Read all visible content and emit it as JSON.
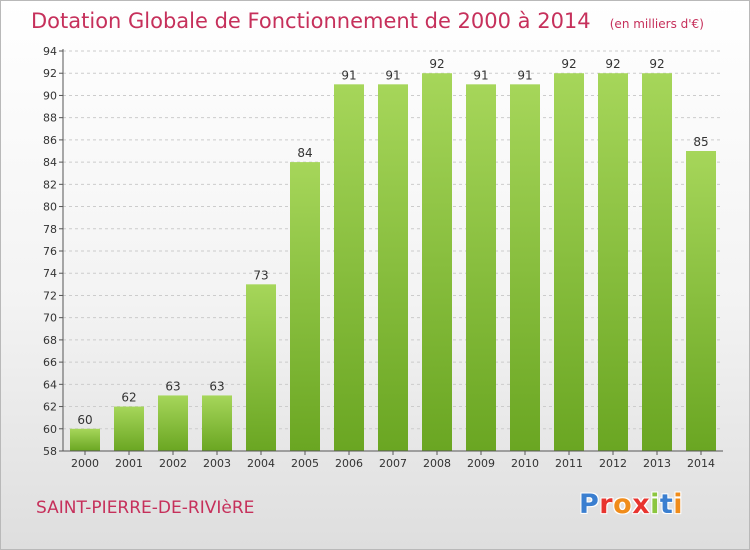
{
  "header": {
    "title": "Dotation Globale de Fonctionnement de 2000 à 2014",
    "unit": "(en milliers d'€)"
  },
  "place_name": "SAINT-PIERRE-DE-RIVIèRE",
  "logo": {
    "text": "Proxiti",
    "letter_colors": [
      "#3b7fd0",
      "#e8342f",
      "#f08c1a",
      "#e8342f",
      "#8cc63f",
      "#3b7fd0",
      "#f08c1a"
    ]
  },
  "colors": {
    "bar_light": "#a6d65a",
    "bar_dark": "#6aa622",
    "text": "#c6305b",
    "grid": "#cccccc"
  },
  "chart_data": {
    "type": "bar",
    "title": "Dotation Globale de Fonctionnement de 2000 à 2014",
    "subtitle": "(en milliers d'€)",
    "categories": [
      "2000",
      "2001",
      "2002",
      "2003",
      "2004",
      "2005",
      "2006",
      "2007",
      "2008",
      "2009",
      "2010",
      "2011",
      "2012",
      "2013",
      "2014"
    ],
    "values": [
      60,
      62,
      63,
      63,
      73,
      84,
      91,
      91,
      92,
      91,
      91,
      92,
      92,
      92,
      85
    ],
    "ylim": [
      58,
      94
    ],
    "yticks": [
      58,
      60,
      62,
      64,
      66,
      68,
      70,
      72,
      74,
      76,
      78,
      80,
      82,
      84,
      86,
      88,
      90,
      92,
      94
    ],
    "grid": true,
    "legend": "none"
  }
}
